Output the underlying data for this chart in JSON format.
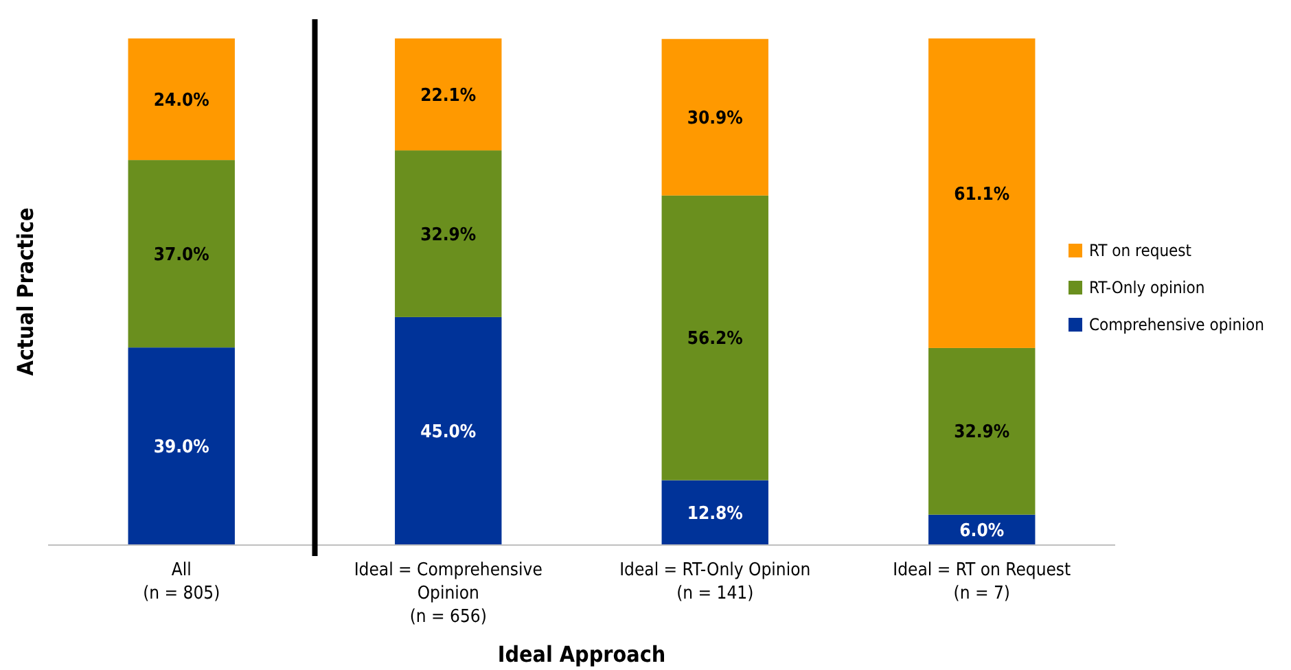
{
  "chart_data": {
    "type": "bar",
    "stacked": true,
    "xlabel": "Ideal Approach",
    "ylabel": "Actual Practice",
    "categories": [
      "All\n(n = 805)",
      "Ideal = Comprehensive\nOpinion\n(n = 656)",
      "Ideal = RT-Only Opinion\n(n = 141)",
      "Ideal = RT on Request\n(n = 7)"
    ],
    "series": [
      {
        "name": "Comprehensive opinion",
        "color": "#003399",
        "values": [
          39.0,
          45.0,
          12.8,
          6.0
        ],
        "value_labels": [
          "39.0%",
          "45.0%",
          "12.8%",
          "6.0%"
        ]
      },
      {
        "name": "RT-Only opinion",
        "color": "#6a8f1e",
        "values": [
          37.0,
          32.9,
          56.2,
          32.9
        ],
        "value_labels": [
          "37.0%",
          "32.9%",
          "56.2%",
          "32.9%"
        ]
      },
      {
        "name": "RT on request",
        "color": "#ff9900",
        "values": [
          24.0,
          22.1,
          30.9,
          61.1
        ],
        "value_labels": [
          "24.0%",
          "22.1%",
          "30.9%",
          "61.1%"
        ]
      }
    ],
    "tick_labels": "x",
    "legend": "right"
  }
}
